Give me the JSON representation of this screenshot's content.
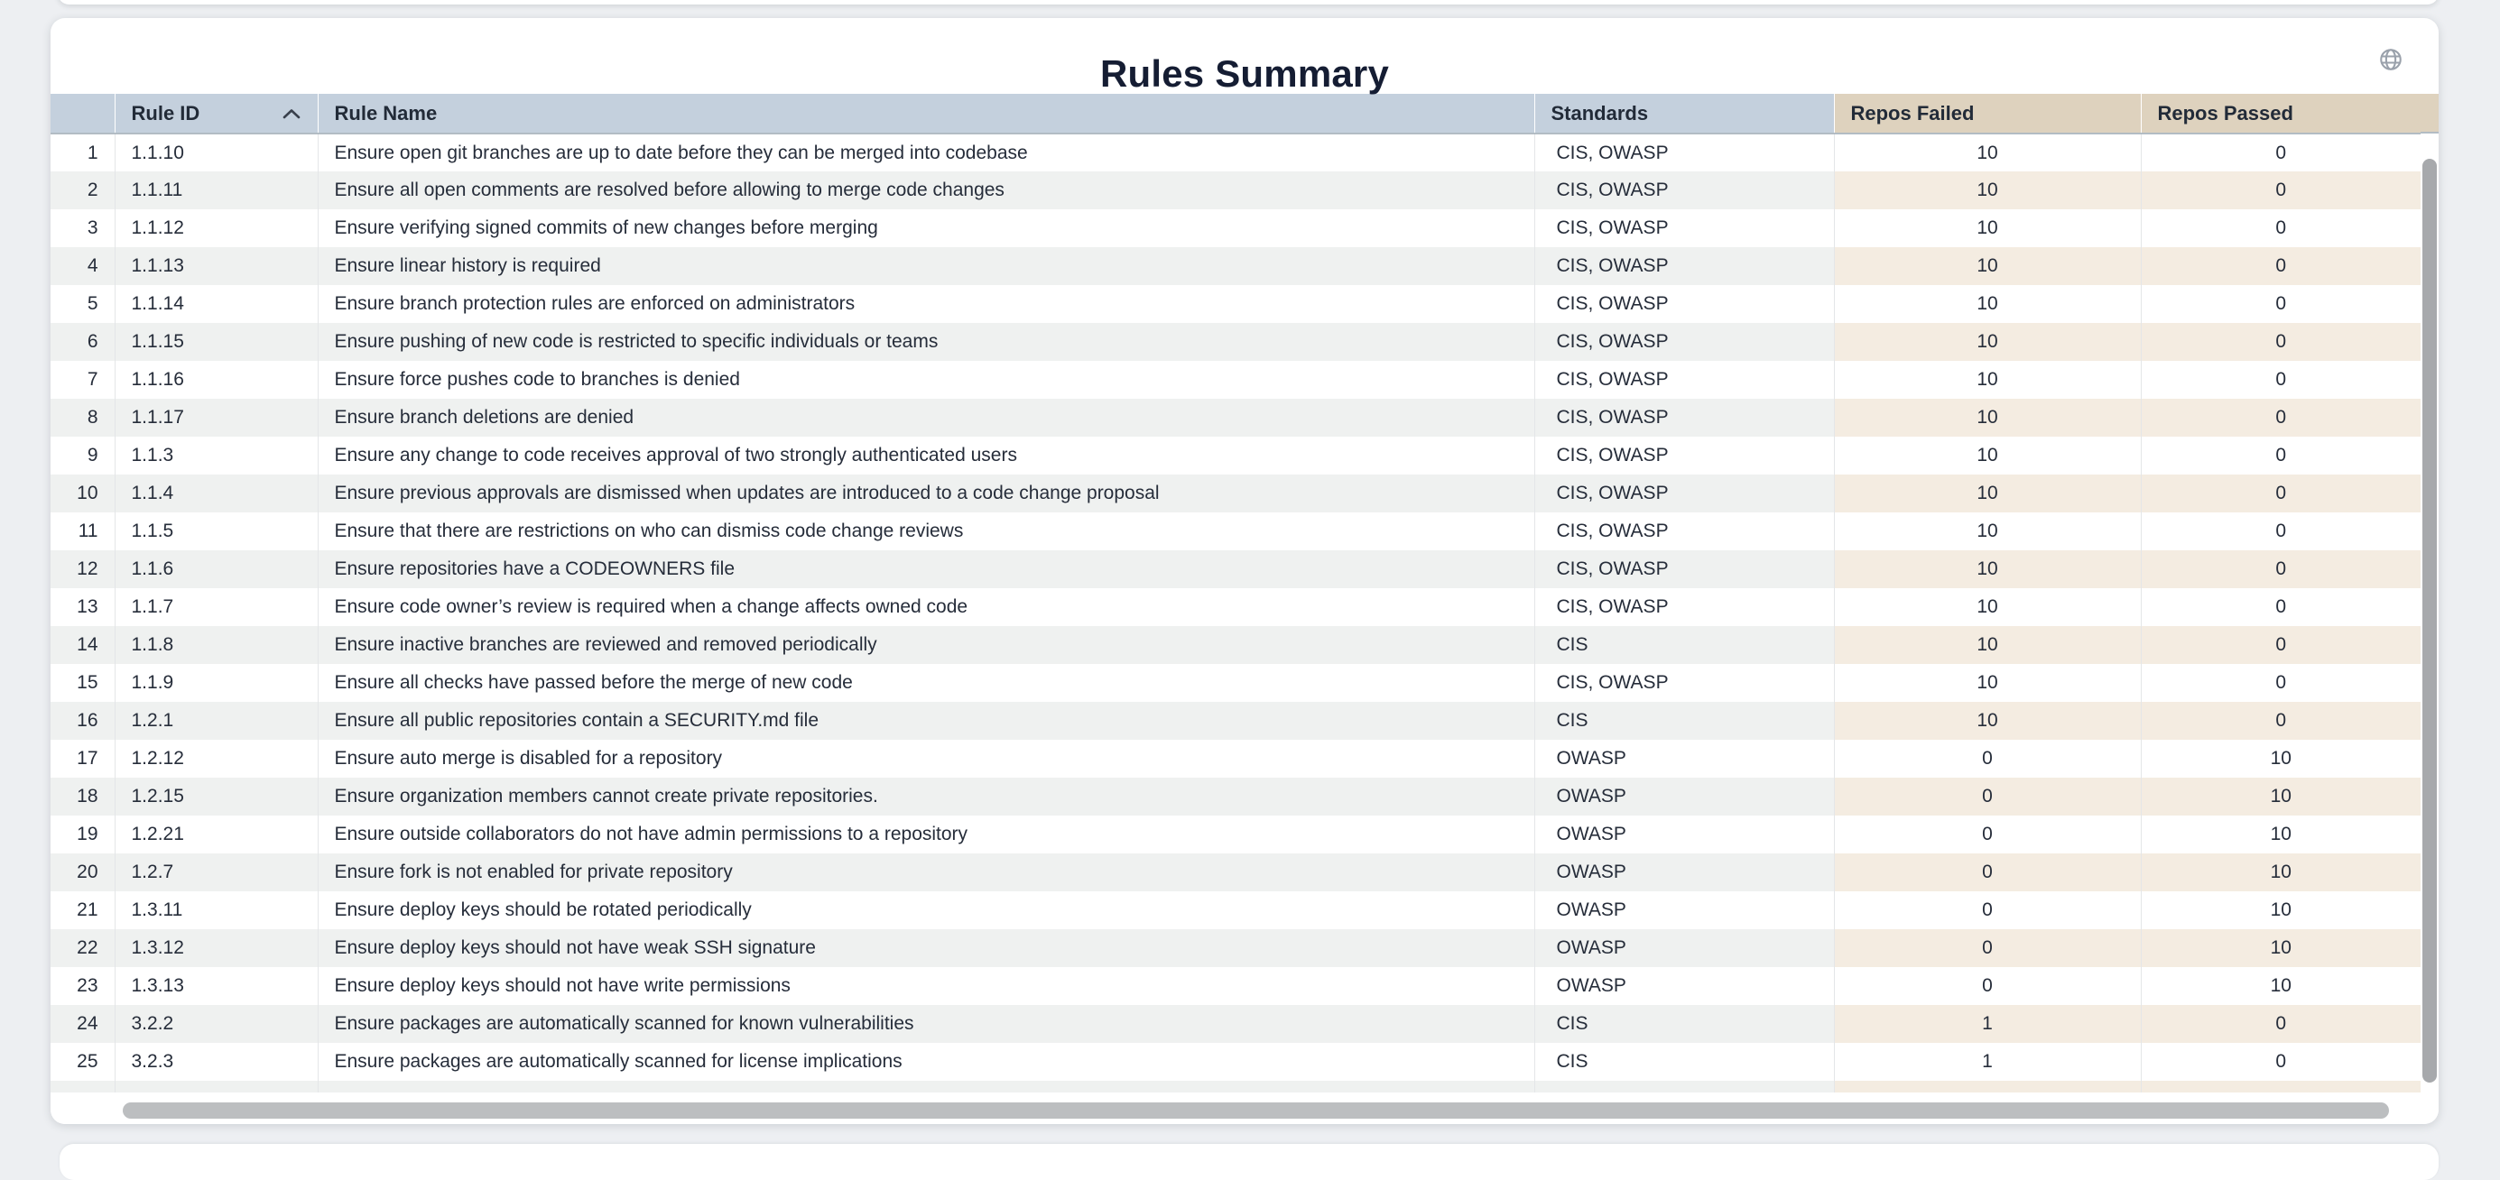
{
  "page": {
    "title": "Rules Summary"
  },
  "icons": {
    "header_action": "globe-icon",
    "rule_id_sort": "sort-ascending-chevron-up-icon"
  },
  "colors": {
    "header_primary_bg": "#c4d0dd",
    "header_metrics_bg": "#ded2be",
    "row_stripe_bg": "#eff1f0",
    "row_stripe_metrics_bg": "#f4ece1",
    "title_color": "#151d33",
    "body_text_color": "#262d3a",
    "globe_icon_color": "#9aa1ab",
    "scrollbar_thumb": "#b0b2b5"
  },
  "table": {
    "columns": [
      {
        "key": "index",
        "label": "",
        "align": "right",
        "group": "primary"
      },
      {
        "key": "rule_id",
        "label": "Rule ID",
        "align": "left",
        "group": "primary",
        "sorted": "ascending"
      },
      {
        "key": "rule_name",
        "label": "Rule Name",
        "align": "left",
        "group": "primary"
      },
      {
        "key": "standards",
        "label": "Standards",
        "align": "left",
        "group": "primary"
      },
      {
        "key": "repos_failed",
        "label": "Repos Failed",
        "align": "center",
        "group": "metrics"
      },
      {
        "key": "repos_passed",
        "label": "Repos Passed",
        "align": "center",
        "group": "metrics"
      }
    ],
    "rows": [
      {
        "index": 1,
        "rule_id": "1.1.10",
        "rule_name": "Ensure open git branches are up to date before they can be merged into codebase",
        "standards": "CIS, OWASP",
        "repos_failed": 10,
        "repos_passed": 0
      },
      {
        "index": 2,
        "rule_id": "1.1.11",
        "rule_name": "Ensure all open comments are resolved before allowing to merge code changes",
        "standards": "CIS, OWASP",
        "repos_failed": 10,
        "repos_passed": 0
      },
      {
        "index": 3,
        "rule_id": "1.1.12",
        "rule_name": "Ensure verifying signed commits of new changes before merging",
        "standards": "CIS, OWASP",
        "repos_failed": 10,
        "repos_passed": 0
      },
      {
        "index": 4,
        "rule_id": "1.1.13",
        "rule_name": "Ensure linear history is required",
        "standards": "CIS, OWASP",
        "repos_failed": 10,
        "repos_passed": 0
      },
      {
        "index": 5,
        "rule_id": "1.1.14",
        "rule_name": "Ensure branch protection rules are enforced on administrators",
        "standards": "CIS, OWASP",
        "repos_failed": 10,
        "repos_passed": 0
      },
      {
        "index": 6,
        "rule_id": "1.1.15",
        "rule_name": "Ensure pushing of new code is restricted to specific individuals or teams",
        "standards": "CIS, OWASP",
        "repos_failed": 10,
        "repos_passed": 0
      },
      {
        "index": 7,
        "rule_id": "1.1.16",
        "rule_name": "Ensure force pushes code to branches is denied",
        "standards": "CIS, OWASP",
        "repos_failed": 10,
        "repos_passed": 0
      },
      {
        "index": 8,
        "rule_id": "1.1.17",
        "rule_name": "Ensure branch deletions are denied",
        "standards": "CIS, OWASP",
        "repos_failed": 10,
        "repos_passed": 0
      },
      {
        "index": 9,
        "rule_id": "1.1.3",
        "rule_name": "Ensure any change to code receives approval of two strongly authenticated users",
        "standards": "CIS, OWASP",
        "repos_failed": 10,
        "repos_passed": 0
      },
      {
        "index": 10,
        "rule_id": "1.1.4",
        "rule_name": "Ensure previous approvals are dismissed when updates are introduced to a code change proposal",
        "standards": "CIS, OWASP",
        "repos_failed": 10,
        "repos_passed": 0
      },
      {
        "index": 11,
        "rule_id": "1.1.5",
        "rule_name": "Ensure that there are restrictions on who can dismiss code change reviews",
        "standards": "CIS, OWASP",
        "repos_failed": 10,
        "repos_passed": 0
      },
      {
        "index": 12,
        "rule_id": "1.1.6",
        "rule_name": "Ensure repositories have a CODEOWNERS file",
        "standards": "CIS, OWASP",
        "repos_failed": 10,
        "repos_passed": 0
      },
      {
        "index": 13,
        "rule_id": "1.1.7",
        "rule_name": "Ensure code owner’s review is required when a change affects owned code",
        "standards": "CIS, OWASP",
        "repos_failed": 10,
        "repos_passed": 0
      },
      {
        "index": 14,
        "rule_id": "1.1.8",
        "rule_name": "Ensure inactive branches are reviewed and removed periodically",
        "standards": "CIS",
        "repos_failed": 10,
        "repos_passed": 0
      },
      {
        "index": 15,
        "rule_id": "1.1.9",
        "rule_name": "Ensure all checks have passed before the merge of new code",
        "standards": "CIS, OWASP",
        "repos_failed": 10,
        "repos_passed": 0
      },
      {
        "index": 16,
        "rule_id": "1.2.1",
        "rule_name": "Ensure all public repositories contain a SECURITY.md file",
        "standards": "CIS",
        "repos_failed": 10,
        "repos_passed": 0
      },
      {
        "index": 17,
        "rule_id": "1.2.12",
        "rule_name": "Ensure auto merge is disabled for a repository",
        "standards": "OWASP",
        "repos_failed": 0,
        "repos_passed": 10
      },
      {
        "index": 18,
        "rule_id": "1.2.15",
        "rule_name": "Ensure organization members cannot create private repositories.",
        "standards": "OWASP",
        "repos_failed": 0,
        "repos_passed": 10
      },
      {
        "index": 19,
        "rule_id": "1.2.21",
        "rule_name": "Ensure outside collaborators do not have admin permissions to a repository",
        "standards": "OWASP",
        "repos_failed": 0,
        "repos_passed": 10
      },
      {
        "index": 20,
        "rule_id": "1.2.7",
        "rule_name": "Ensure fork is not enabled for private repository",
        "standards": "OWASP",
        "repos_failed": 0,
        "repos_passed": 10
      },
      {
        "index": 21,
        "rule_id": "1.3.11",
        "rule_name": "Ensure deploy keys should be rotated periodically",
        "standards": "OWASP",
        "repos_failed": 0,
        "repos_passed": 10
      },
      {
        "index": 22,
        "rule_id": "1.3.12",
        "rule_name": "Ensure deploy keys should not have weak SSH signature",
        "standards": "OWASP",
        "repos_failed": 0,
        "repos_passed": 10
      },
      {
        "index": 23,
        "rule_id": "1.3.13",
        "rule_name": "Ensure deploy keys should not have write permissions",
        "standards": "OWASP",
        "repos_failed": 0,
        "repos_passed": 10
      },
      {
        "index": 24,
        "rule_id": "3.2.2",
        "rule_name": "Ensure packages are automatically scanned for known vulnerabilities",
        "standards": "CIS",
        "repos_failed": 1,
        "repos_passed": 0
      },
      {
        "index": 25,
        "rule_id": "3.2.3",
        "rule_name": "Ensure packages are automatically scanned for license implications",
        "standards": "CIS",
        "repos_failed": 1,
        "repos_passed": 0
      }
    ]
  }
}
